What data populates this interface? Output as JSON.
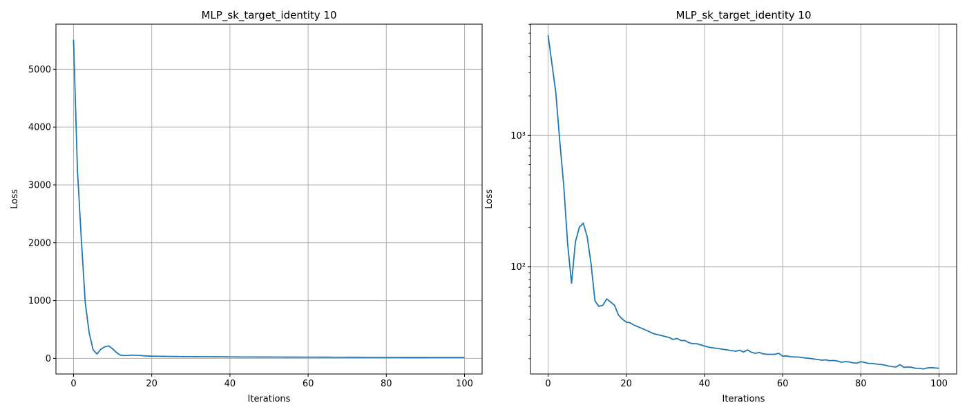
{
  "colors": {
    "series": "#1f77b4",
    "grid": "#b0b0b0"
  },
  "chart_data": [
    {
      "type": "line",
      "title": "MLP_sk_target_identity 10",
      "xlabel": "Iterations",
      "ylabel": "Loss",
      "yscale": "linear",
      "grid": true,
      "xlim": [
        -4.5,
        104.5
      ],
      "ylim": [
        -270,
        5780
      ],
      "xticks": [
        0,
        20,
        40,
        60,
        80,
        100
      ],
      "xtick_labels": [
        "0",
        "20",
        "40",
        "60",
        "80",
        "100"
      ],
      "yticks": [
        0,
        1000,
        2000,
        3000,
        4000,
        5000
      ],
      "ytick_labels": [
        "0",
        "1000",
        "2000",
        "3000",
        "4000",
        "5000"
      ],
      "series": [
        {
          "values": [
            5510,
            3250,
            2050,
            960,
            440,
            150,
            75,
            160,
            200,
            215,
            165,
            100,
            55,
            49,
            51,
            57,
            54,
            51,
            44,
            41,
            38,
            37,
            36,
            35,
            34,
            33,
            32,
            31,
            30.5,
            30,
            29.5,
            29,
            28.5,
            28.5,
            28,
            28,
            27.5,
            27,
            26.5,
            26,
            25.5,
            25,
            24.5,
            24.2,
            24,
            23.8,
            23.5,
            23.3,
            23,
            23,
            22.8,
            22.5,
            22.3,
            22,
            21.8,
            21.6,
            21.5,
            21.4,
            21.3,
            21.2,
            20.8,
            20.6,
            20.4,
            20.2,
            20,
            19.8,
            19.6,
            19.4,
            19.2,
            19,
            18.8,
            18.7,
            18.6,
            18.5,
            18.4,
            18.3,
            18.2,
            18.1,
            18,
            17.9,
            17.8,
            17.7,
            17.6,
            17.5,
            17.4,
            17.3,
            17.2,
            17.1,
            17,
            17,
            17.2,
            16.8,
            16.8,
            16.7,
            16.7,
            16.6,
            16.6,
            16.7,
            16.8,
            16.8,
            16.7
          ]
        }
      ]
    },
    {
      "type": "line",
      "title": "MLP_sk_target_identity 10",
      "xlabel": "Iterations",
      "ylabel": "Loss",
      "yscale": "log",
      "grid": true,
      "xlim": [
        -4.5,
        104.5
      ],
      "ylim": [
        15.3,
        7030
      ],
      "xticks": [
        0,
        20,
        40,
        60,
        80,
        100
      ],
      "xtick_labels": [
        "0",
        "20",
        "40",
        "60",
        "80",
        "100"
      ],
      "yticks": [
        100,
        1000
      ],
      "ytick_labels": [
        "10²",
        "10³"
      ],
      "series": [
        {
          "values": [
            5800,
            3500,
            2100,
            900,
            420,
            150,
            75,
            155,
            200,
            215,
            170,
            105,
            55,
            50,
            51,
            57,
            54,
            51,
            43,
            40,
            38,
            37.5,
            36,
            35,
            34,
            33,
            32,
            31,
            30.5,
            30,
            29.5,
            29,
            28,
            28.5,
            27.5,
            27.5,
            26.5,
            26,
            26,
            25.5,
            25,
            24.5,
            24.2,
            24,
            23.8,
            23.5,
            23.3,
            23,
            22.8,
            23.2,
            22.5,
            23.3,
            22.4,
            22,
            22.3,
            21.8,
            21.6,
            21.6,
            21.6,
            22,
            20.9,
            21,
            20.7,
            20.6,
            20.6,
            20.4,
            20.2,
            20.1,
            19.9,
            19.7,
            19.5,
            19.6,
            19.3,
            19.4,
            19.2,
            18.8,
            19,
            18.9,
            18.6,
            18.5,
            19,
            18.7,
            18.4,
            18.4,
            18.2,
            18.1,
            17.9,
            17.6,
            17.4,
            17.3,
            18,
            17.2,
            17.3,
            17.2,
            16.9,
            16.9,
            16.7,
            17,
            17.1,
            17,
            16.9
          ]
        }
      ]
    }
  ]
}
